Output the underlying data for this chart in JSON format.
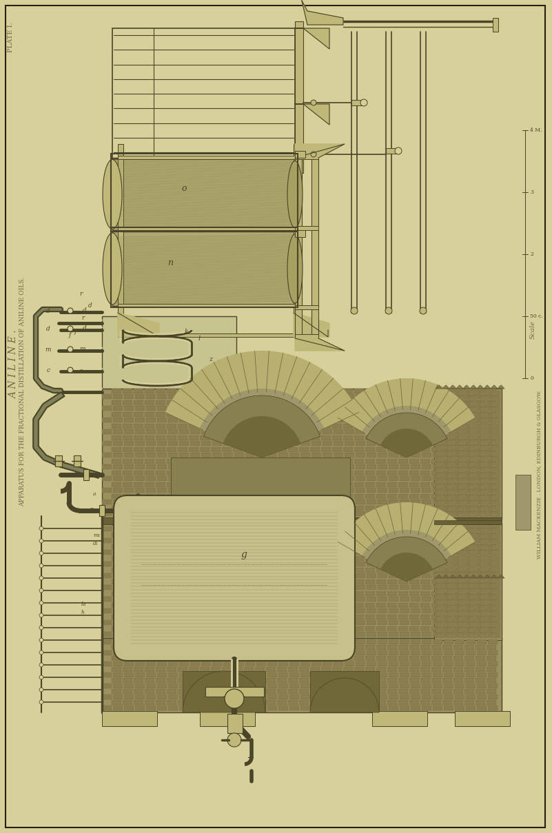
{
  "bg_color": "#d8d09a",
  "page_bg": "#d8d09a",
  "line_color": "#4a4428",
  "dark_line": "#2a2010",
  "mid_line": "#6a6040",
  "title_left1": "A N I L I N E .",
  "title_left2": "APPARATUS FOR THE FRACTIONAL DISTILLATION OF ANILINE OILS.",
  "plate_label": "PLATE I.",
  "right_label": "Scale",
  "publisher": "WILLIAM MACKENZIE . LONDON, EDINBURGH & GLASGOW.",
  "scale_labels": [
    "4 M.",
    "3",
    "2",
    "50 c.",
    "0"
  ],
  "fig_width": 8.01,
  "fig_height": 12.09,
  "dpi": 100,
  "brick_color": "#8a7e50",
  "brick_dark": "#6a6038",
  "brick_mortar": "#9a9060",
  "cyl_fill": "#b0a870",
  "cyl_hatch": "#888050",
  "frame_fill": "#c0b878",
  "metal_fill": "#b8b078",
  "metal_dark": "#7a7040",
  "furnace_bg": "#9a9060",
  "arch_fill": "#c0b880",
  "arch_dark": "#6a6030",
  "still_fill": "#c8c08a",
  "pipe_color": "#808058",
  "coil_fill": "#c8c490"
}
